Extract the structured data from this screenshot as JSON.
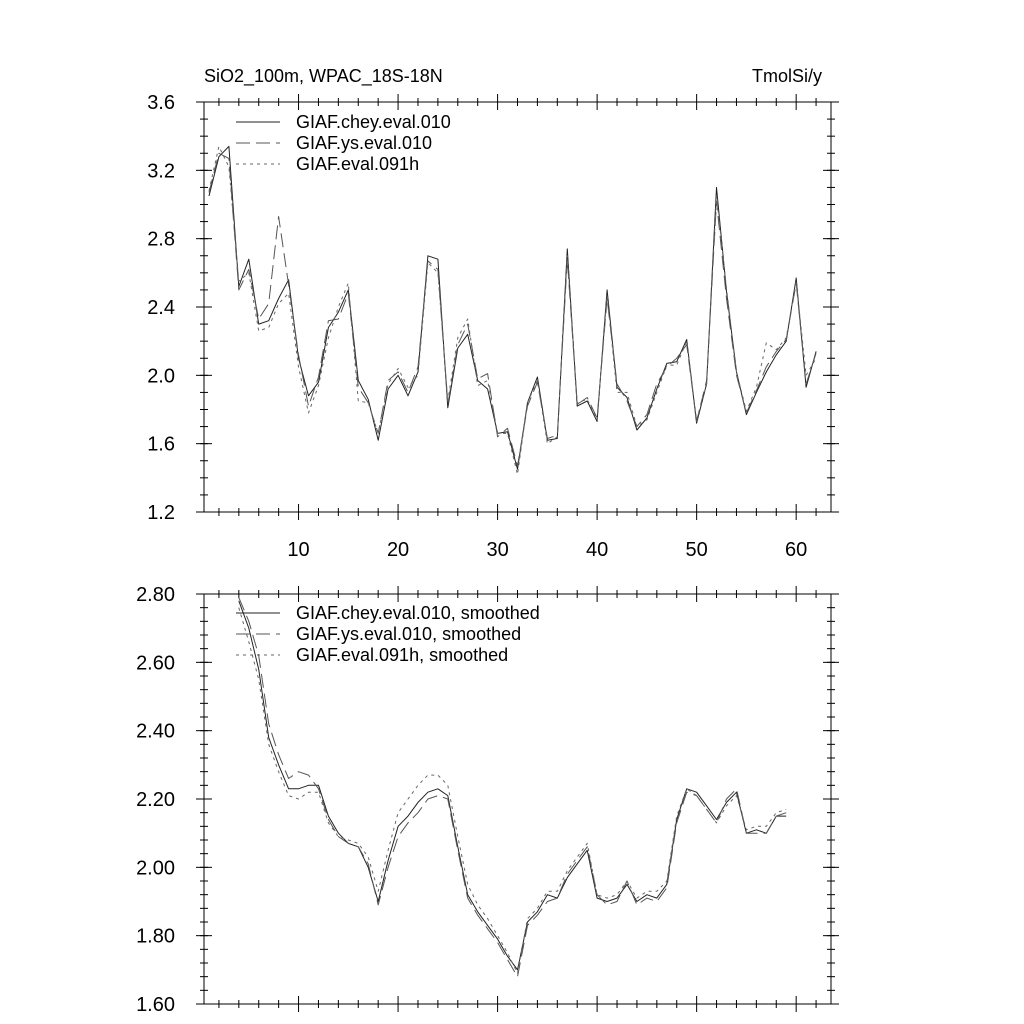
{
  "chart_data": [
    {
      "type": "line",
      "title_left": "SiO2_100m, WPAC_18S-18N",
      "title_right": "TmolSi/y",
      "xlabel": "",
      "ylabel": "",
      "xlim": [
        0.5,
        63.5
      ],
      "ylim": [
        1.2,
        3.6
      ],
      "yticks": [
        "1.2",
        "1.6",
        "2.0",
        "2.4",
        "2.8",
        "3.2",
        "3.6"
      ],
      "xticks": [
        "10",
        "20",
        "30",
        "40",
        "50",
        "60"
      ],
      "legend_position": "top-left",
      "series": [
        {
          "name": "GIAF.chey.eval.010",
          "style": "solid",
          "color": "#222222",
          "x": [
            1,
            2,
            3,
            4,
            5,
            6,
            7,
            8,
            9,
            10,
            11,
            12,
            13,
            14,
            15,
            16,
            17,
            18,
            19,
            20,
            21,
            22,
            23,
            24,
            25,
            26,
            27,
            28,
            29,
            30,
            31,
            32,
            33,
            34,
            35,
            36,
            37,
            38,
            39,
            40,
            41,
            42,
            43,
            44,
            45,
            46,
            47,
            48,
            49,
            50,
            51,
            52,
            53,
            54,
            55,
            56,
            57,
            58,
            59,
            60,
            61,
            62
          ],
          "values": [
            3.05,
            3.28,
            3.34,
            2.52,
            2.68,
            2.3,
            2.32,
            2.45,
            2.56,
            2.1,
            1.88,
            1.96,
            2.28,
            2.37,
            2.5,
            1.97,
            1.86,
            1.62,
            1.92,
            2.0,
            1.88,
            2.02,
            2.7,
            2.68,
            1.81,
            2.16,
            2.24,
            1.97,
            1.92,
            1.66,
            1.67,
            1.45,
            1.84,
            1.99,
            1.62,
            1.63,
            2.74,
            1.82,
            1.85,
            1.73,
            2.5,
            1.93,
            1.87,
            1.68,
            1.75,
            1.92,
            2.07,
            2.08,
            2.21,
            1.72,
            1.95,
            3.1,
            2.49,
            2.02,
            1.77,
            1.9,
            2.02,
            2.12,
            2.2,
            2.57,
            1.93,
            2.14
          ]
        },
        {
          "name": "GIAF.ys.eval.010",
          "style": "dashed",
          "color": "#555555",
          "x": [
            1,
            2,
            3,
            4,
            5,
            6,
            7,
            8,
            9,
            10,
            11,
            12,
            13,
            14,
            15,
            16,
            17,
            18,
            19,
            20,
            21,
            22,
            23,
            24,
            25,
            26,
            27,
            28,
            29,
            30,
            31,
            32,
            33,
            34,
            35,
            36,
            37,
            38,
            39,
            40,
            41,
            42,
            43,
            44,
            45,
            46,
            47,
            48,
            49,
            50,
            51,
            52,
            53,
            54,
            55,
            56,
            57,
            58,
            59,
            60,
            61,
            62
          ],
          "values": [
            3.07,
            3.3,
            3.27,
            2.5,
            2.62,
            2.33,
            2.42,
            2.93,
            2.53,
            2.12,
            1.82,
            1.99,
            2.32,
            2.33,
            2.48,
            1.93,
            1.84,
            1.66,
            1.97,
            2.02,
            1.9,
            2.05,
            2.67,
            2.62,
            1.83,
            2.18,
            2.3,
            1.98,
            2.01,
            1.64,
            1.69,
            1.47,
            1.82,
            1.96,
            1.63,
            1.65,
            2.68,
            1.83,
            1.87,
            1.75,
            2.45,
            1.95,
            1.85,
            1.7,
            1.77,
            1.95,
            2.05,
            2.1,
            2.18,
            1.73,
            1.97,
            3.02,
            2.45,
            2.0,
            1.78,
            1.91,
            2.05,
            2.14,
            2.21,
            2.54,
            1.95,
            2.13
          ]
        },
        {
          "name": "GIAF.eval.091h",
          "style": "dotted",
          "color": "#666666",
          "x": [
            1,
            2,
            3,
            4,
            5,
            6,
            7,
            8,
            9,
            10,
            11,
            12,
            13,
            14,
            15,
            16,
            17,
            18,
            19,
            20,
            21,
            22,
            23,
            24,
            25,
            26,
            27,
            28,
            29,
            30,
            31,
            32,
            33,
            34,
            35,
            36,
            37,
            38,
            39,
            40,
            41,
            42,
            43,
            44,
            45,
            46,
            47,
            48,
            49,
            50,
            51,
            52,
            53,
            54,
            55,
            56,
            57,
            58,
            59,
            60,
            61,
            62
          ],
          "values": [
            3.08,
            3.34,
            3.22,
            2.55,
            2.6,
            2.26,
            2.28,
            2.42,
            2.48,
            2.05,
            1.78,
            1.94,
            2.22,
            2.4,
            2.54,
            1.85,
            1.84,
            1.66,
            1.95,
            2.04,
            1.93,
            2.0,
            2.66,
            2.6,
            1.85,
            2.22,
            2.33,
            1.94,
            1.97,
            1.66,
            1.66,
            1.42,
            1.84,
            1.97,
            1.6,
            1.64,
            2.7,
            1.84,
            1.86,
            1.74,
            2.47,
            1.9,
            1.9,
            1.7,
            1.74,
            1.9,
            2.06,
            2.06,
            2.2,
            1.74,
            1.95,
            3.05,
            2.51,
            2.02,
            1.79,
            1.93,
            2.19,
            2.15,
            2.22,
            2.55,
            2.0,
            2.1
          ]
        }
      ]
    },
    {
      "type": "line",
      "xlabel": "",
      "ylabel": "",
      "xlim": [
        0.5,
        63.5
      ],
      "ylim": [
        1.6,
        2.8
      ],
      "yticks": [
        "1.60",
        "1.80",
        "2.00",
        "2.20",
        "2.40",
        "2.60",
        "2.80"
      ],
      "legend_position": "top-left",
      "series": [
        {
          "name": "GIAF.chey.eval.010, smoothed",
          "style": "solid",
          "color": "#222222",
          "x": [
            4,
            5,
            6,
            7,
            8,
            9,
            10,
            11,
            12,
            13,
            14,
            15,
            16,
            17,
            18,
            19,
            20,
            21,
            22,
            23,
            24,
            25,
            26,
            27,
            28,
            29,
            30,
            31,
            32,
            33,
            34,
            35,
            36,
            37,
            38,
            39,
            40,
            41,
            42,
            43,
            44,
            45,
            46,
            47,
            48,
            49,
            50,
            51,
            52,
            53,
            54,
            55,
            56,
            57,
            58,
            59
          ],
          "values": [
            2.78,
            2.7,
            2.58,
            2.38,
            2.3,
            2.23,
            2.23,
            2.24,
            2.24,
            2.15,
            2.1,
            2.07,
            2.06,
            2.0,
            1.9,
            2.02,
            2.12,
            2.15,
            2.19,
            2.22,
            2.23,
            2.21,
            2.06,
            1.92,
            1.87,
            1.83,
            1.79,
            1.74,
            1.7,
            1.84,
            1.87,
            1.92,
            1.91,
            1.97,
            2.01,
            2.05,
            1.91,
            1.9,
            1.91,
            1.95,
            1.9,
            1.92,
            1.91,
            1.95,
            2.14,
            2.23,
            2.22,
            2.18,
            2.14,
            2.19,
            2.22,
            2.1,
            2.11,
            2.1,
            2.15,
            2.15
          ]
        },
        {
          "name": "GIAF.ys.eval.010, smoothed",
          "style": "dashed",
          "color": "#555555",
          "x": [
            4,
            5,
            6,
            7,
            8,
            9,
            10,
            11,
            12,
            13,
            14,
            15,
            16,
            17,
            18,
            19,
            20,
            21,
            22,
            23,
            24,
            25,
            26,
            27,
            28,
            29,
            30,
            31,
            32,
            33,
            34,
            35,
            36,
            37,
            38,
            39,
            40,
            41,
            42,
            43,
            44,
            45,
            46,
            47,
            48,
            49,
            50,
            51,
            52,
            53,
            54,
            55,
            56,
            57,
            58,
            59
          ],
          "values": [
            2.79,
            2.72,
            2.62,
            2.42,
            2.33,
            2.26,
            2.28,
            2.27,
            2.23,
            2.14,
            2.09,
            2.07,
            2.06,
            2.01,
            1.89,
            2.0,
            2.09,
            2.13,
            2.16,
            2.2,
            2.21,
            2.2,
            2.05,
            1.91,
            1.86,
            1.82,
            1.78,
            1.73,
            1.68,
            1.83,
            1.86,
            1.9,
            1.91,
            1.98,
            2.02,
            2.06,
            1.92,
            1.89,
            1.9,
            1.96,
            1.89,
            1.91,
            1.9,
            1.94,
            2.13,
            2.22,
            2.21,
            2.17,
            2.13,
            2.2,
            2.23,
            2.1,
            2.1,
            2.1,
            2.15,
            2.16
          ]
        },
        {
          "name": "GIAF.eval.091h, smoothed",
          "style": "dotted",
          "color": "#666666",
          "x": [
            4,
            5,
            6,
            7,
            8,
            9,
            10,
            11,
            12,
            13,
            14,
            15,
            16,
            17,
            18,
            19,
            20,
            21,
            22,
            23,
            24,
            25,
            26,
            27,
            28,
            29,
            30,
            31,
            32,
            33,
            34,
            35,
            36,
            37,
            38,
            39,
            40,
            41,
            42,
            43,
            44,
            45,
            46,
            47,
            48,
            49,
            50,
            51,
            52,
            53,
            54,
            55,
            56,
            57,
            58,
            59
          ],
          "values": [
            2.76,
            2.66,
            2.55,
            2.36,
            2.28,
            2.21,
            2.2,
            2.22,
            2.22,
            2.13,
            2.09,
            2.08,
            2.07,
            2.03,
            1.93,
            2.05,
            2.16,
            2.2,
            2.24,
            2.27,
            2.27,
            2.24,
            2.09,
            1.95,
            1.89,
            1.85,
            1.8,
            1.75,
            1.69,
            1.85,
            1.88,
            1.93,
            1.93,
            1.99,
            2.03,
            2.07,
            1.92,
            1.91,
            1.92,
            1.96,
            1.91,
            1.93,
            1.93,
            1.96,
            2.15,
            2.23,
            2.21,
            2.17,
            2.13,
            2.18,
            2.21,
            2.11,
            2.12,
            2.12,
            2.16,
            2.17
          ]
        }
      ]
    }
  ]
}
